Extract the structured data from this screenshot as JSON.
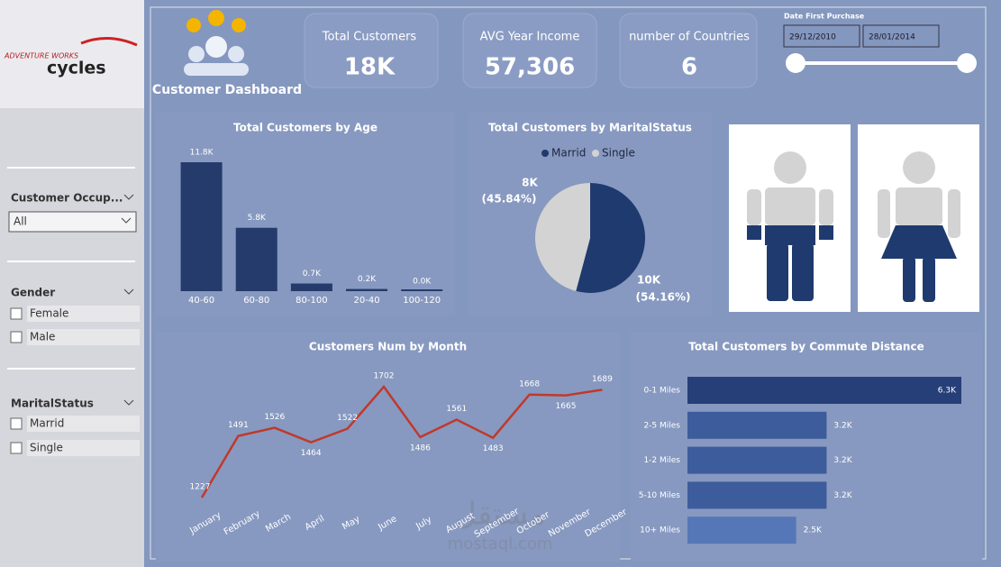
{
  "header": {
    "logo_top": "ADVENTURE WORKS",
    "logo_bottom": "cycles",
    "title": "Customer Dashboard"
  },
  "kpis": [
    {
      "label": "Total Customers",
      "value": "18K"
    },
    {
      "label": "AVG Year Income",
      "value": "57,306"
    },
    {
      "label": "number of Countries",
      "value": "6"
    }
  ],
  "date_filter": {
    "title": "Date First Purchase",
    "from": "29/12/2010",
    "to": "28/01/2014"
  },
  "filters": [
    {
      "title": "Customer Occup...",
      "selected": "All"
    },
    {
      "title": "Gender",
      "options": [
        "Female",
        "Male"
      ]
    },
    {
      "title": "MaritalStatus",
      "options": [
        "Marrid",
        "Single"
      ]
    }
  ],
  "watermark": [
    "مستقل",
    "mostaql.com"
  ],
  "chart_data": [
    {
      "type": "bar",
      "title": "Total Customers by Age",
      "categories": [
        "40-60",
        "60-80",
        "80-100",
        "20-40",
        "100-120"
      ],
      "values": [
        11.8,
        5.8,
        0.7,
        0.2,
        0
      ],
      "value_labels": [
        "11.8K",
        "5.8K",
        "0.7K",
        "0.2K",
        "0.0K"
      ],
      "color": "#243b6b"
    },
    {
      "type": "pie",
      "title": "Total Customers by MaritalStatus",
      "categories": [
        "Marrid",
        "Single"
      ],
      "values": [
        54.16,
        45.84
      ],
      "value_labels": [
        "(54.16%)",
        "(45.84%)"
      ],
      "counts": [
        10,
        8
      ],
      "count_labels": [
        "10K",
        "8K"
      ],
      "colors": [
        "#1f3a6e",
        "#d3d3d3"
      ]
    },
    {
      "type": "line",
      "title": "Customers Num by Month",
      "categories": [
        "January",
        "February",
        "March",
        "April",
        "May",
        "June",
        "July",
        "August",
        "September",
        "October",
        "November",
        "December"
      ],
      "values": [
        1227,
        1491,
        1526,
        1464,
        1522,
        1702,
        1486,
        1561,
        1483,
        1668,
        1665,
        1689
      ],
      "color": "#c0392b"
    },
    {
      "type": "barh",
      "title": "Total Customers by Commute Distance",
      "categories": [
        "0-1 Miles",
        "2-5 Miles",
        "1-2 Miles",
        "5-10 Miles",
        "10+ Miles"
      ],
      "values": [
        6.3,
        3.2,
        3.2,
        3.2,
        2.5
      ],
      "value_labels": [
        "6.3K",
        "3.2K",
        "3.2K",
        "3.2K",
        "2.5K"
      ],
      "colors": [
        "#263f78",
        "#3d5c9c",
        "#3d5c9c",
        "#3d5c9c",
        "#5577b8"
      ]
    }
  ]
}
